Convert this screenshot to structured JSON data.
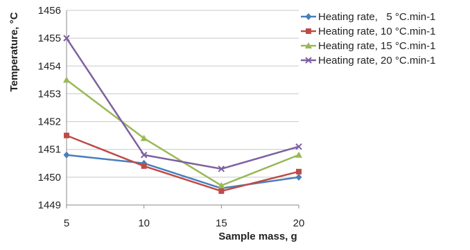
{
  "chart_data": {
    "type": "line",
    "title": "",
    "xlabel": "Sample mass, g",
    "ylabel": "Temperature, °C",
    "x": [
      5,
      10,
      15,
      20
    ],
    "x_tick_labels": [
      "5",
      "10",
      "15",
      "20"
    ],
    "ylim": [
      1449,
      1456
    ],
    "y_tick_labels": [
      "1449",
      "1450",
      "1451",
      "1452",
      "1453",
      "1454",
      "1455",
      "1456"
    ],
    "grid": "horizontal",
    "legend_position": "right",
    "series": [
      {
        "name": "Heating rate,   5 °C.min-1",
        "values": [
          1450.8,
          1450.5,
          1449.6,
          1450.0
        ],
        "color": "#4a7ebb",
        "marker": "diamond"
      },
      {
        "name": "Heating rate, 10 °C.min-1",
        "values": [
          1451.5,
          1450.4,
          1449.5,
          1450.2
        ],
        "color": "#be4b48",
        "marker": "square"
      },
      {
        "name": "Heating rate, 15 °C.min-1",
        "values": [
          1453.5,
          1451.4,
          1449.7,
          1450.8
        ],
        "color": "#98b954",
        "marker": "triangle"
      },
      {
        "name": "Heating rate, 20 °C.min-1",
        "values": [
          1455.0,
          1450.8,
          1450.3,
          1451.1
        ],
        "color": "#7d60a0",
        "marker": "x"
      }
    ]
  }
}
